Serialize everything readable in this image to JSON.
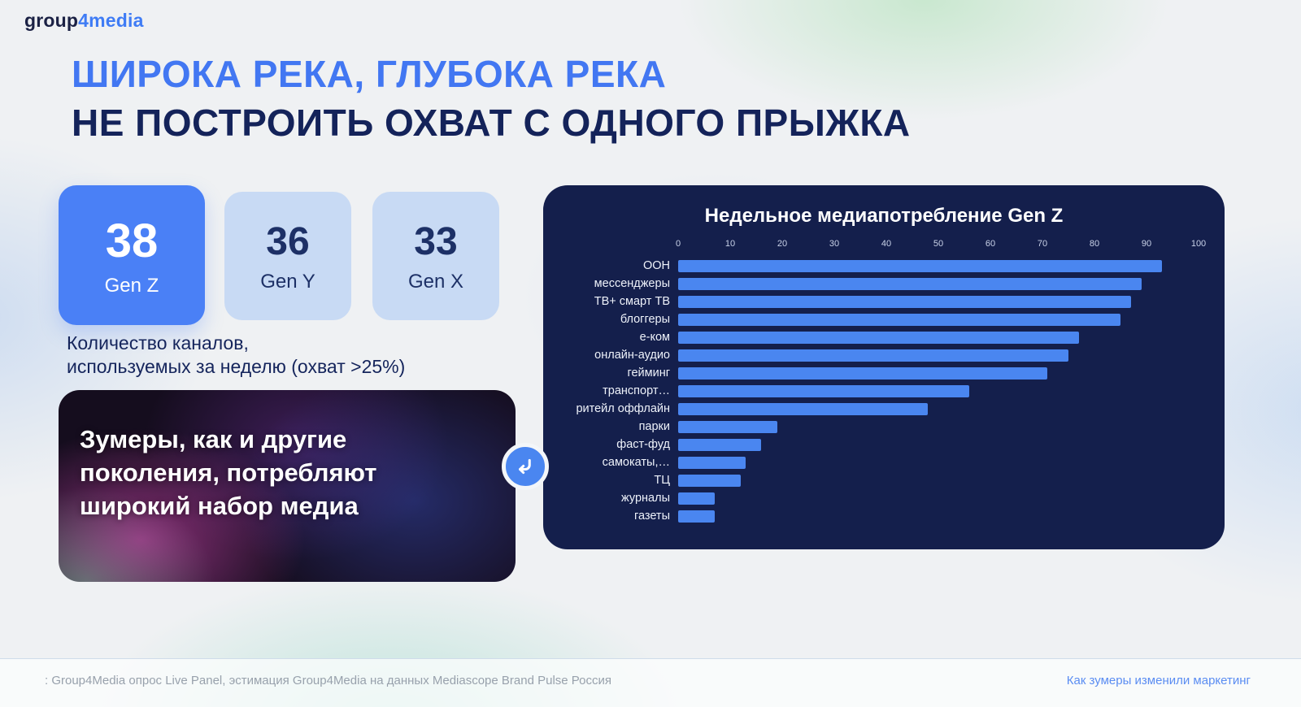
{
  "brand": {
    "part1": "group",
    "part2": "4media"
  },
  "header": {
    "title_line1": "ШИРОКА РЕКА, ГЛУБОКА РЕКА",
    "title_line2": "НЕ ПОСТРОИТЬ ОХВАТ С ОДНОГО ПРЫЖКА"
  },
  "stat_cards": [
    {
      "value": "38",
      "label": "Gen Z",
      "variant": "primary"
    },
    {
      "value": "36",
      "label": "Gen Y",
      "variant": "light"
    },
    {
      "value": "33",
      "label": "Gen X",
      "variant": "light"
    }
  ],
  "stat_caption": {
    "line1": "Количество каналов,",
    "line2": "используемых за неделю (охват >25%)"
  },
  "callout": {
    "text": "Зумеры, как и другие поколения, потребляют широкий набор медиа",
    "icon": "curved-arrow-icon"
  },
  "chart_data": {
    "type": "bar",
    "orientation": "horizontal",
    "title": "Недельное медиапотребление Gen Z",
    "categories": [
      "OOH",
      "мессенджеры",
      "ТВ+ смарт ТВ",
      "блоггеры",
      "е-ком",
      "онлайн-аудио",
      "гейминг",
      "транспорт…",
      "ритейл оффлайн",
      "парки",
      "фаст-фуд",
      "самокаты,…",
      "ТЦ",
      "журналы",
      "газеты"
    ],
    "values": [
      93,
      89,
      87,
      85,
      77,
      75,
      71,
      56,
      48,
      19,
      16,
      13,
      12,
      7,
      7
    ],
    "xlim": [
      0,
      100
    ],
    "x_ticks": [
      0,
      10,
      20,
      30,
      40,
      50,
      60,
      70,
      80,
      90,
      100
    ],
    "grid": false,
    "legend": "none",
    "bar_color": "#4a86f0",
    "panel_color": "#141f4c"
  },
  "footer": {
    "source": ": Group4Media опрос Live Panel, эстимация Group4Media на данных Mediascope Brand Pulse Россия",
    "link": "Как зумеры изменили маркетинг"
  }
}
